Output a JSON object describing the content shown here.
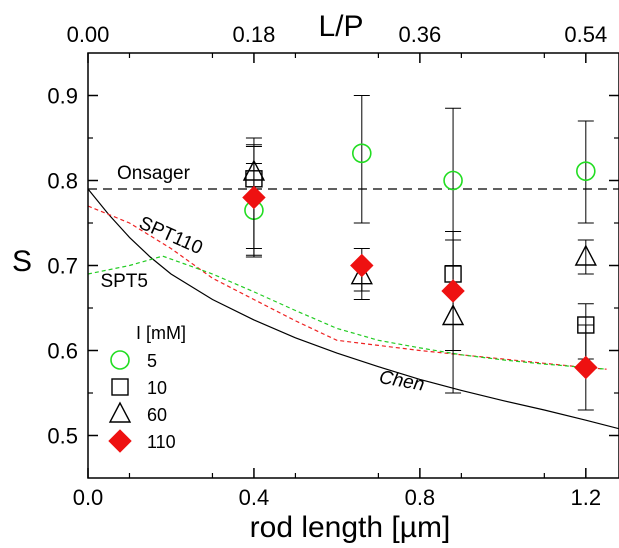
{
  "chart_data": {
    "type": "scatter",
    "title": "",
    "xlabel": "rod length [µm]",
    "ylabel": "S",
    "x2label": "L/P",
    "xlim": [
      0.0,
      1.28
    ],
    "ylim": [
      0.45,
      0.95
    ],
    "x_ticks": [
      {
        "value": 0.0,
        "label": "0.0"
      },
      {
        "value": 0.4,
        "label": "0.4"
      },
      {
        "value": 0.8,
        "label": "0.8"
      },
      {
        "value": 1.2,
        "label": "1.2"
      }
    ],
    "x2_ticks": [
      {
        "value": 0.0,
        "label": "0.00"
      },
      {
        "value": 0.4,
        "label": "0.18"
      },
      {
        "value": 0.8,
        "label": "0.36"
      },
      {
        "value": 1.2,
        "label": "0.54"
      }
    ],
    "y_ticks": [
      {
        "value": 0.5,
        "label": "0.5"
      },
      {
        "value": 0.6,
        "label": "0.6"
      },
      {
        "value": 0.7,
        "label": "0.7"
      },
      {
        "value": 0.8,
        "label": "0.8"
      },
      {
        "value": 0.9,
        "label": "0.9"
      }
    ],
    "grid": false,
    "legend": {
      "title": "I [mM]",
      "placement": "bottom-left",
      "entries": [
        "5",
        "10",
        "60",
        "110"
      ]
    },
    "series": [
      {
        "name": "5",
        "marker": "circle-open",
        "color": "#22dd22",
        "x": [
          0.4,
          0.66,
          0.88,
          1.2
        ],
        "y": [
          0.765,
          0.832,
          0.8,
          0.811
        ],
        "err_low": [
          0.055,
          0.082,
          0.1,
          0.061
        ],
        "err_high": [
          0.055,
          0.068,
          0.085,
          0.059
        ]
      },
      {
        "name": "10",
        "marker": "square-open",
        "color": "#000000",
        "x": [
          0.4,
          0.88,
          1.2
        ],
        "y": [
          0.802,
          0.69,
          0.63
        ],
        "err_low": [
          0.09,
          0.09,
          0.04
        ],
        "err_high": [
          0.04,
          0.05,
          0.025
        ]
      },
      {
        "name": "60",
        "marker": "triangle-open",
        "color": "#000000",
        "x": [
          0.4,
          0.66,
          0.88,
          1.2
        ],
        "y": [
          0.81,
          0.688,
          0.64,
          0.71
        ],
        "err_low": [
          0.1,
          0.028,
          0.09,
          0.02
        ],
        "err_high": [
          0.04,
          0.012,
          0.1,
          0.02
        ]
      },
      {
        "name": "110",
        "marker": "diamond-filled",
        "color": "#ee1111",
        "x": [
          0.4,
          0.66,
          0.88,
          1.2
        ],
        "y": [
          0.78,
          0.7,
          0.67,
          0.58
        ],
        "err_low": [
          0.06,
          0.03,
          0.07,
          0.05
        ],
        "err_high": [
          0.06,
          0.02,
          0.06,
          0.05
        ]
      }
    ],
    "lines": [
      {
        "label": "Onsager",
        "style": "dashed",
        "color": "#000000",
        "x": [
          0.0,
          1.28
        ],
        "y": [
          0.79,
          0.79
        ]
      },
      {
        "label": "Chen",
        "style": "solid",
        "color": "#000000",
        "x": [
          0.0,
          0.05,
          0.1,
          0.15,
          0.2,
          0.3,
          0.4,
          0.5,
          0.6,
          0.7,
          0.8,
          0.9,
          1.0,
          1.1,
          1.2,
          1.28
        ],
        "y": [
          0.79,
          0.76,
          0.733,
          0.71,
          0.69,
          0.66,
          0.636,
          0.615,
          0.597,
          0.581,
          0.566,
          0.553,
          0.541,
          0.53,
          0.518,
          0.508
        ]
      },
      {
        "label": "SPT110",
        "style": "dashed",
        "color": "#ee2222",
        "x": [
          0.0,
          0.1,
          0.2,
          0.3,
          0.4,
          0.5,
          0.6,
          0.7,
          0.8,
          0.9,
          1.0,
          1.1,
          1.2,
          1.25
        ],
        "y": [
          0.77,
          0.75,
          0.72,
          0.685,
          0.66,
          0.635,
          0.612,
          0.606,
          0.6,
          0.595,
          0.59,
          0.585,
          0.58,
          0.578
        ]
      },
      {
        "label": "SPT5",
        "style": "dashed",
        "color": "#22cc22",
        "x": [
          0.0,
          0.1,
          0.18,
          0.3,
          0.4,
          0.5,
          0.6,
          0.7,
          0.8,
          0.9,
          1.0,
          1.1,
          1.2,
          1.25
        ],
        "y": [
          0.69,
          0.7,
          0.711,
          0.69,
          0.669,
          0.647,
          0.626,
          0.612,
          0.603,
          0.595,
          0.589,
          0.584,
          0.58,
          0.578
        ]
      }
    ],
    "annotations": [
      {
        "text": "Onsager",
        "x": 0.07,
        "y": 0.802
      },
      {
        "text": "SPT110",
        "x": 0.12,
        "y": 0.745
      },
      {
        "text": "SPT5",
        "x": 0.03,
        "y": 0.675
      },
      {
        "text": "Chen",
        "x": 0.7,
        "y": 0.562
      }
    ]
  }
}
